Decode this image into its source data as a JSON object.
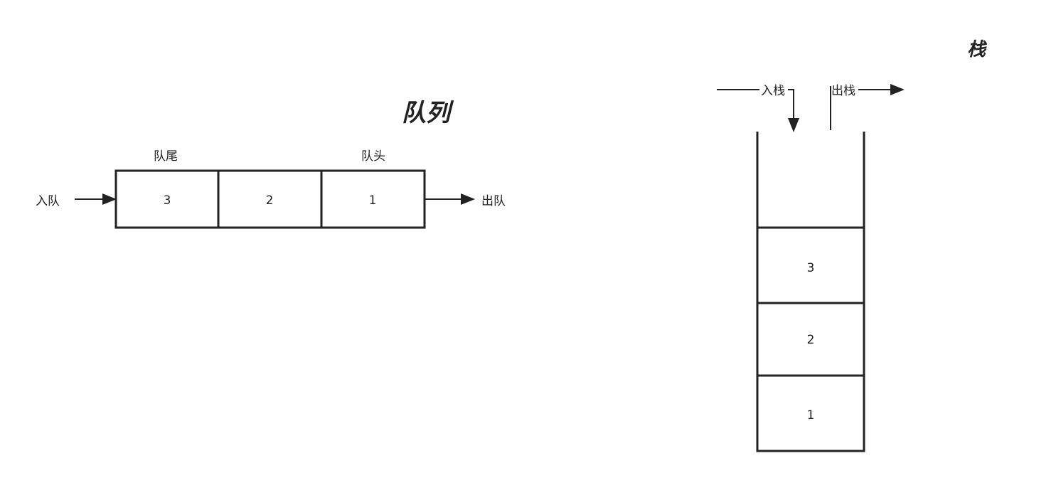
{
  "queue": {
    "title": "队列",
    "tail_label": "队尾",
    "head_label": "队头",
    "enqueue_label": "入队",
    "dequeue_label": "出队",
    "cells": [
      "3",
      "2",
      "1"
    ]
  },
  "stack": {
    "title": "栈",
    "push_label": "入栈",
    "pop_label": "出栈",
    "cells": [
      "3",
      "2",
      "1"
    ]
  }
}
